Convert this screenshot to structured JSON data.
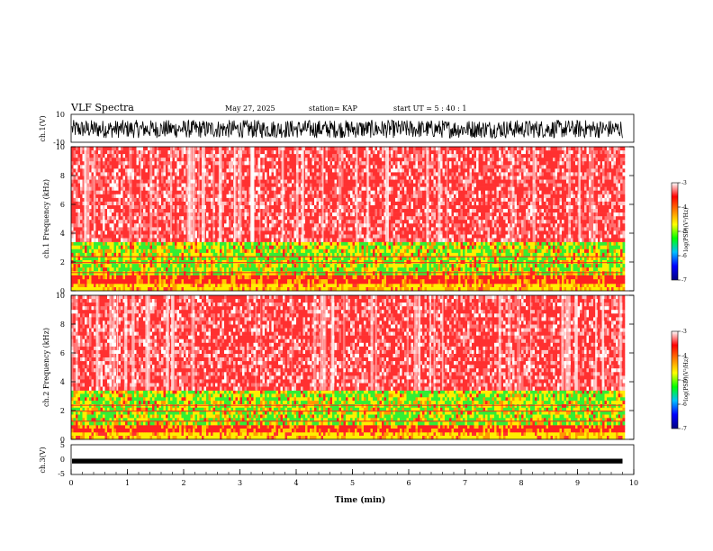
{
  "header": {
    "title": "VLF Spectra",
    "date": "May 27, 2025",
    "station": "station= KAP",
    "start": "start  UT  =   5  : 40 : 1"
  },
  "chart_data": [
    {
      "type": "line",
      "panel": "ch1-waveform",
      "ylabel": "ch.1(V)",
      "ylim": [
        -10,
        10
      ],
      "yticks": [
        "10",
        "-10"
      ],
      "xlim": [
        0,
        10
      ],
      "series_color": "#000000",
      "envelope": {
        "min": -7,
        "max": 6
      }
    },
    {
      "type": "heatmap",
      "panel": "ch1-spectrogram",
      "ylabel": "ch.1 Frequency (kHz)",
      "ylim": [
        0,
        10
      ],
      "yticks": [
        "0",
        "2",
        "4",
        "6",
        "8",
        "10"
      ],
      "xlim": [
        0,
        9.8
      ],
      "bands": [
        {
          "from": 0,
          "to": 0.5,
          "level": "yellow"
        },
        {
          "from": 0.5,
          "to": 1.1,
          "level": "red"
        },
        {
          "from": 1.1,
          "to": 3.4,
          "level": "green-yellow"
        },
        {
          "from": 3.4,
          "to": 10,
          "level": "red-white"
        }
      ]
    },
    {
      "type": "heatmap",
      "panel": "ch2-spectrogram",
      "ylabel": "ch.2 Frequency (kHz)",
      "ylim": [
        0,
        10
      ],
      "yticks": [
        "0",
        "2",
        "4",
        "6",
        "8",
        "10"
      ],
      "xlim": [
        0,
        9.8
      ],
      "bands": [
        {
          "from": 0,
          "to": 0.5,
          "level": "yellow"
        },
        {
          "from": 0.5,
          "to": 1.0,
          "level": "red"
        },
        {
          "from": 1.0,
          "to": 3.4,
          "level": "green-yellow"
        },
        {
          "from": 3.4,
          "to": 10,
          "level": "red-white"
        }
      ]
    },
    {
      "type": "line",
      "panel": "ch3-waveform",
      "ylabel": "ch.3(V)",
      "ylim": [
        -5,
        5
      ],
      "yticks": [
        "5",
        "0",
        "-5"
      ],
      "xlim": [
        0,
        10
      ],
      "xlabel": "Time (min)",
      "xticks": [
        "0",
        "1",
        "2",
        "3",
        "4",
        "5",
        "6",
        "7",
        "8",
        "9",
        "10"
      ],
      "series_color": "#000000",
      "envelope": {
        "min": -1.3,
        "max": 0.3
      }
    }
  ],
  "colorbar": {
    "label": "log(PSD)(V²/Hz)",
    "ticks": [
      "-3",
      "-4",
      "-5",
      "-6",
      "-7"
    ],
    "range": [
      -7,
      -3
    ],
    "colors": [
      "#000080",
      "#0000ff",
      "#00bfff",
      "#00ff00",
      "#ffff00",
      "#ff8000",
      "#ff0000",
      "#ffffff"
    ]
  }
}
